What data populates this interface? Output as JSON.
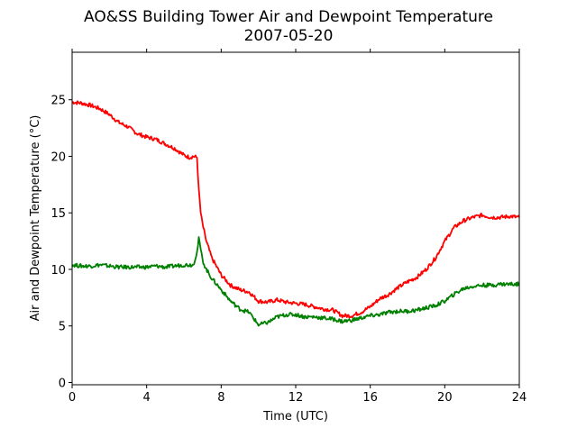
{
  "chart_data": {
    "type": "line",
    "title": "AO&SS Building Tower Air and Dewpoint Temperature",
    "subtitle": "2007-05-20",
    "xlabel": "Time (UTC)",
    "ylabel": "Air and Dewpoint Temperature (°C)",
    "xlim": [
      0,
      24
    ],
    "ylim": [
      -0.2,
      29.2
    ],
    "xticks": [
      0,
      4,
      8,
      12,
      16,
      20,
      24
    ],
    "yticks": [
      0,
      5,
      10,
      15,
      20,
      25
    ],
    "grid": false,
    "legend": "none",
    "series": [
      {
        "color": "#ff0000",
        "x": [
          0,
          0.5,
          1.0,
          1.5,
          2.0,
          2.5,
          3.0,
          3.5,
          4.0,
          4.5,
          5.0,
          5.5,
          6.0,
          6.3,
          6.5,
          6.7,
          6.8,
          6.9,
          7.0,
          7.2,
          7.5,
          8.0,
          8.5,
          9.0,
          9.5,
          10.0,
          10.5,
          11.0,
          11.5,
          12.0,
          12.5,
          13.0,
          13.5,
          14.0,
          14.5,
          15.0,
          15.5,
          16.0,
          16.5,
          17.0,
          17.5,
          18.0,
          18.5,
          19.0,
          19.5,
          20.0,
          20.5,
          21.0,
          21.5,
          22.0,
          22.5,
          23.0,
          23.5,
          24.0
        ],
        "y": [
          24.8,
          24.7,
          24.5,
          24.2,
          23.7,
          23.0,
          22.6,
          22.0,
          21.7,
          21.5,
          21.1,
          20.7,
          20.1,
          19.9,
          20.0,
          19.9,
          17.0,
          15.0,
          14.0,
          12.5,
          11.0,
          9.5,
          8.6,
          8.2,
          8.0,
          7.2,
          7.1,
          7.3,
          7.1,
          7.0,
          6.9,
          6.7,
          6.5,
          6.4,
          5.9,
          5.9,
          6.2,
          6.7,
          7.4,
          7.8,
          8.4,
          8.9,
          9.3,
          10.0,
          11.0,
          12.5,
          13.7,
          14.3,
          14.6,
          14.8,
          14.6,
          14.6,
          14.7,
          14.6
        ]
      },
      {
        "color": "#008000",
        "x": [
          0,
          0.5,
          1.0,
          1.5,
          2.0,
          2.5,
          3.0,
          3.5,
          4.0,
          4.5,
          5.0,
          5.5,
          6.0,
          6.5,
          6.7,
          6.8,
          6.9,
          7.0,
          7.2,
          7.5,
          8.0,
          8.5,
          9.0,
          9.5,
          10.0,
          10.5,
          11.0,
          11.5,
          12.0,
          12.5,
          13.0,
          13.5,
          14.0,
          14.5,
          15.0,
          15.5,
          16.0,
          16.5,
          17.0,
          17.5,
          18.0,
          18.5,
          19.0,
          19.5,
          20.0,
          20.5,
          21.0,
          21.5,
          22.0,
          22.5,
          23.0,
          23.5,
          24.0
        ],
        "y": [
          10.4,
          10.3,
          10.3,
          10.4,
          10.3,
          10.2,
          10.2,
          10.2,
          10.2,
          10.3,
          10.2,
          10.3,
          10.4,
          10.4,
          11.5,
          12.7,
          11.8,
          10.8,
          10.0,
          9.2,
          8.2,
          7.2,
          6.5,
          6.2,
          5.1,
          5.3,
          5.8,
          6.0,
          6.0,
          5.8,
          5.8,
          5.7,
          5.6,
          5.4,
          5.5,
          5.7,
          5.9,
          6.0,
          6.2,
          6.3,
          6.3,
          6.4,
          6.6,
          6.8,
          7.2,
          7.8,
          8.3,
          8.5,
          8.6,
          8.6,
          8.7,
          8.7,
          8.7
        ]
      }
    ]
  }
}
